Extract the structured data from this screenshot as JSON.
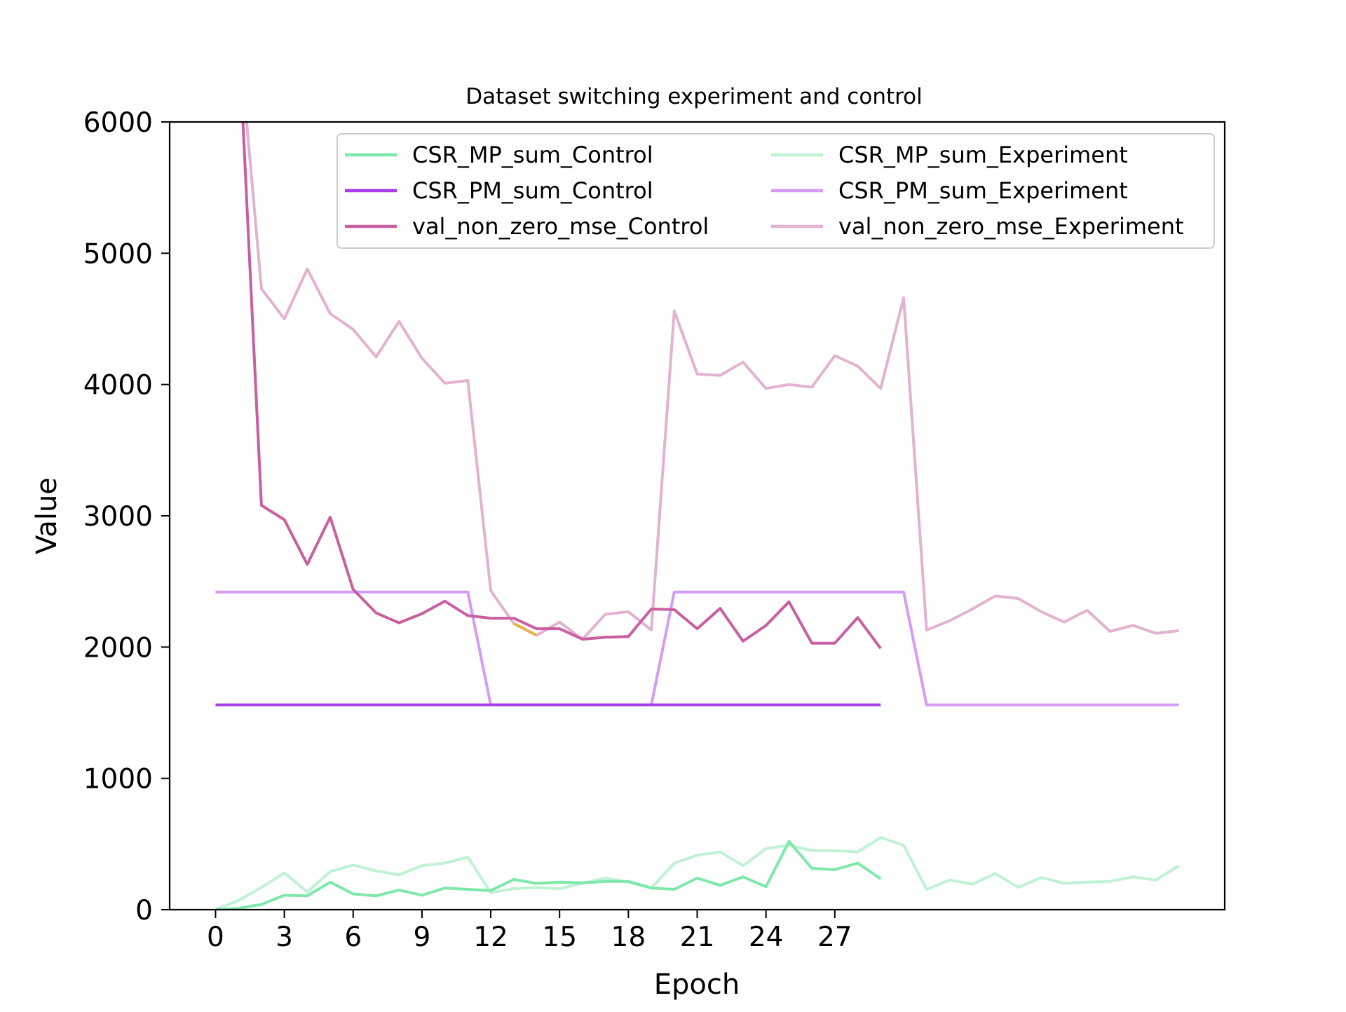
{
  "chart_data": {
    "type": "line",
    "title": "Dataset switching experiment and control",
    "xlabel": "Epoch",
    "ylabel": "Value",
    "xlim": [
      -2,
      44
    ],
    "ylim": [
      0,
      6000
    ],
    "x_ticks": [
      0,
      3,
      6,
      9,
      12,
      15,
      18,
      21,
      24,
      27
    ],
    "x_tick_labels": [
      "0",
      "3",
      "6",
      "9",
      "12",
      "15",
      "18",
      "21",
      "24",
      "27"
    ],
    "y_ticks": [
      0,
      1000,
      2000,
      3000,
      4000,
      5000,
      6000
    ],
    "y_tick_labels": [
      "0",
      "1000",
      "2000",
      "3000",
      "4000",
      "5000",
      "6000"
    ],
    "grid": false,
    "legend_position": "top-right",
    "legend_columns": 2,
    "series": [
      {
        "name": "CSR_MP_sum_Control",
        "color": "#7de8aa",
        "alpha": 1.0,
        "x": [
          0,
          1,
          2,
          3,
          4,
          5,
          6,
          7,
          8,
          9,
          10,
          11,
          12,
          13,
          14,
          15,
          16,
          17,
          18,
          19,
          20,
          21,
          22,
          23,
          24,
          25,
          26,
          27,
          28,
          29
        ],
        "values": [
          0,
          10,
          40,
          110,
          105,
          210,
          120,
          105,
          150,
          110,
          165,
          155,
          145,
          230,
          200,
          210,
          205,
          215,
          215,
          165,
          155,
          240,
          185,
          250,
          175,
          520,
          315,
          305,
          355,
          235
        ]
      },
      {
        "name": "CSR_PM_sum_Control",
        "color": "#a63ee8",
        "alpha": 1.0,
        "x": [
          0,
          1,
          2,
          3,
          4,
          5,
          6,
          7,
          8,
          9,
          10,
          11,
          12,
          13,
          14,
          15,
          16,
          17,
          18,
          19,
          20,
          21,
          22,
          23,
          24,
          25,
          26,
          27,
          28,
          29
        ],
        "values": [
          1560,
          1560,
          1560,
          1560,
          1560,
          1560,
          1560,
          1560,
          1560,
          1560,
          1560,
          1560,
          1560,
          1560,
          1560,
          1560,
          1560,
          1560,
          1560,
          1560,
          1560,
          1560,
          1560,
          1560,
          1560,
          1560,
          1560,
          1560,
          1560,
          1560
        ]
      },
      {
        "name": "val_non_zero_mse_Control",
        "color": "#c85fa0",
        "alpha": 1.0,
        "x": [
          1,
          2,
          3,
          4,
          5,
          6,
          7,
          8,
          9,
          10,
          11,
          12,
          13,
          14,
          15,
          16,
          17,
          18,
          19,
          20,
          21,
          22,
          23,
          24,
          25,
          26,
          27,
          28,
          29
        ],
        "values": [
          6700,
          3080,
          2970,
          2630,
          2990,
          2440,
          2260,
          2185,
          2255,
          2350,
          2240,
          2220,
          2220,
          2140,
          2140,
          2060,
          2075,
          2080,
          2290,
          2285,
          2140,
          2295,
          2045,
          2165,
          2345,
          2030,
          2030,
          2225,
          1990
        ]
      },
      {
        "name": "CSR_MP_sum_Experiment",
        "color": "#bff2d4",
        "alpha": 1.0,
        "x": [
          0,
          1,
          2,
          3,
          4,
          5,
          6,
          7,
          8,
          9,
          10,
          11,
          12,
          13,
          14,
          15,
          16,
          17,
          18,
          19,
          20,
          21,
          22,
          23,
          24,
          25,
          26,
          27,
          28,
          29,
          30,
          31,
          32,
          33,
          34,
          35,
          36,
          37,
          38,
          39,
          40,
          41,
          42
        ],
        "values": [
          0,
          70,
          170,
          280,
          135,
          290,
          340,
          295,
          265,
          335,
          355,
          400,
          130,
          160,
          170,
          160,
          200,
          240,
          210,
          165,
          355,
          415,
          440,
          335,
          465,
          490,
          450,
          450,
          440,
          550,
          490,
          155,
          225,
          195,
          275,
          170,
          245,
          200,
          210,
          215,
          250,
          225,
          335
        ]
      },
      {
        "name": "CSR_PM_sum_Experiment",
        "color": "#d49cf5",
        "alpha": 1.0,
        "x": [
          0,
          1,
          2,
          3,
          4,
          5,
          6,
          7,
          8,
          9,
          10,
          11,
          12,
          13,
          14,
          15,
          16,
          17,
          18,
          19,
          20,
          21,
          22,
          23,
          24,
          25,
          26,
          27,
          28,
          29,
          30,
          31,
          32,
          33,
          34,
          35,
          36,
          37,
          38,
          39,
          40,
          41,
          42
        ],
        "values": [
          2420,
          2420,
          2420,
          2420,
          2420,
          2420,
          2420,
          2420,
          2420,
          2420,
          2420,
          2420,
          1560,
          1560,
          1560,
          1560,
          1560,
          1560,
          1560,
          1560,
          2420,
          2420,
          2420,
          2420,
          2420,
          2420,
          2420,
          2420,
          2420,
          2420,
          2420,
          1560,
          1560,
          1560,
          1560,
          1560,
          1560,
          1560,
          1560,
          1560,
          1560,
          1560,
          1560
        ]
      },
      {
        "name": "val_non_zero_mse_Experiment",
        "color": "#e2b2d0",
        "alpha": 1.0,
        "x": [
          1,
          2,
          3,
          4,
          5,
          6,
          7,
          8,
          9,
          10,
          11,
          12,
          13,
          14,
          15,
          16,
          17,
          18,
          19,
          20,
          21,
          22,
          23,
          24,
          25,
          26,
          27,
          28,
          29,
          30,
          31,
          32,
          33,
          34,
          35,
          36,
          37,
          38,
          39,
          40,
          41,
          42
        ],
        "values": [
          6700,
          4730,
          4500,
          4880,
          4540,
          4420,
          4210,
          4480,
          4200,
          4010,
          4030,
          2430,
          2180,
          2090,
          2190,
          2060,
          2250,
          2270,
          2130,
          4560,
          4080,
          4070,
          4170,
          3970,
          4000,
          3980,
          4220,
          4140,
          3970,
          4660,
          2130,
          2200,
          2290,
          2390,
          2370,
          2270,
          2190,
          2280,
          2120,
          2165,
          2105,
          2125
        ]
      },
      {
        "color": "#e8b14a",
        "alpha": 1.0,
        "x": [
          13,
          14
        ],
        "values": [
          2180,
          2090
        ]
      }
    ]
  }
}
